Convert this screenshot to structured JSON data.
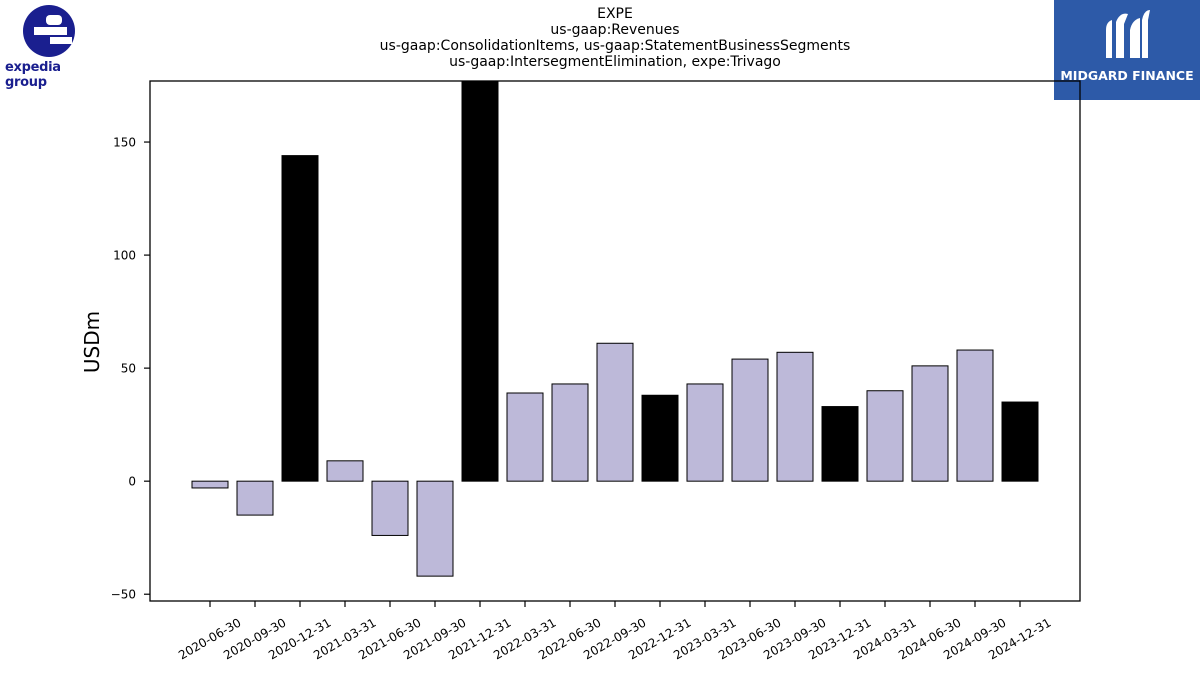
{
  "logos": {
    "left_text": "expedia group",
    "right_text": "MIDGARD FINANCE",
    "brand_color": "#1a1f8f",
    "right_bg": "#2d5aa8"
  },
  "chart_data": {
    "type": "bar",
    "title_lines": [
      "EXPE",
      "us-gaap:Revenues",
      "us-gaap:ConsolidationItems, us-gaap:StatementBusinessSegments",
      "us-gaap:IntersegmentElimination, expe:Trivago"
    ],
    "ylabel": "USDm",
    "xlabel": "",
    "ylim": [
      -53,
      177
    ],
    "yticks": [
      -50,
      0,
      50,
      100,
      150
    ],
    "categories": [
      "2020-06-30",
      "2020-09-30",
      "2020-12-31",
      "2021-03-31",
      "2021-06-30",
      "2021-09-30",
      "2021-12-31",
      "2022-03-31",
      "2022-06-30",
      "2022-09-30",
      "2022-12-31",
      "2023-03-31",
      "2023-06-30",
      "2023-09-30",
      "2023-12-31",
      "2024-03-31",
      "2024-06-30",
      "2024-09-30",
      "2024-12-31"
    ],
    "values": [
      -3,
      -15,
      144,
      9,
      -24,
      -42,
      180,
      39,
      43,
      61,
      38,
      43,
      54,
      57,
      33,
      40,
      51,
      58,
      35
    ],
    "colors": [
      "#bdb9d9",
      "#bdb9d9",
      "#000000",
      "#bdb9d9",
      "#bdb9d9",
      "#bdb9d9",
      "#000000",
      "#bdb9d9",
      "#bdb9d9",
      "#bdb9d9",
      "#000000",
      "#bdb9d9",
      "#bdb9d9",
      "#bdb9d9",
      "#000000",
      "#bdb9d9",
      "#bdb9d9",
      "#bdb9d9",
      "#000000"
    ],
    "grid": false
  }
}
